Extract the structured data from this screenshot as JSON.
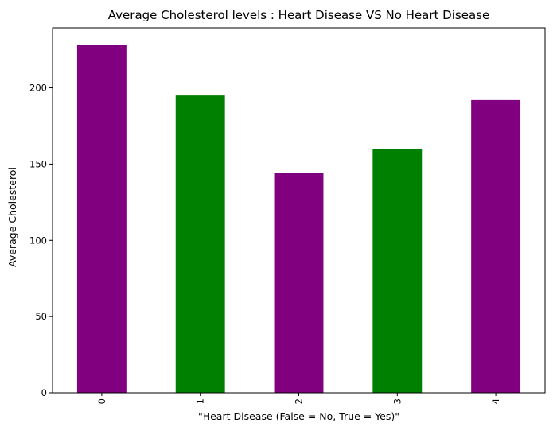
{
  "chart_data": {
    "type": "bar",
    "title": "Average Cholesterol levels : Heart Disease VS No Heart Disease",
    "xlabel": "\"Heart Disease (False = No, True = Yes)\"",
    "ylabel": "Average Cholesterol",
    "categories": [
      "0",
      "1",
      "2",
      "3",
      "4"
    ],
    "values": [
      228,
      195,
      144,
      160,
      192
    ],
    "bar_colors": [
      "#800080",
      "#008000",
      "#800080",
      "#008000",
      "#800080"
    ],
    "ylim": [
      0,
      239.4
    ],
    "yticks": [
      0,
      50,
      100,
      150,
      200
    ],
    "xtick_rotation": 90,
    "grid": false,
    "legend": "none"
  }
}
